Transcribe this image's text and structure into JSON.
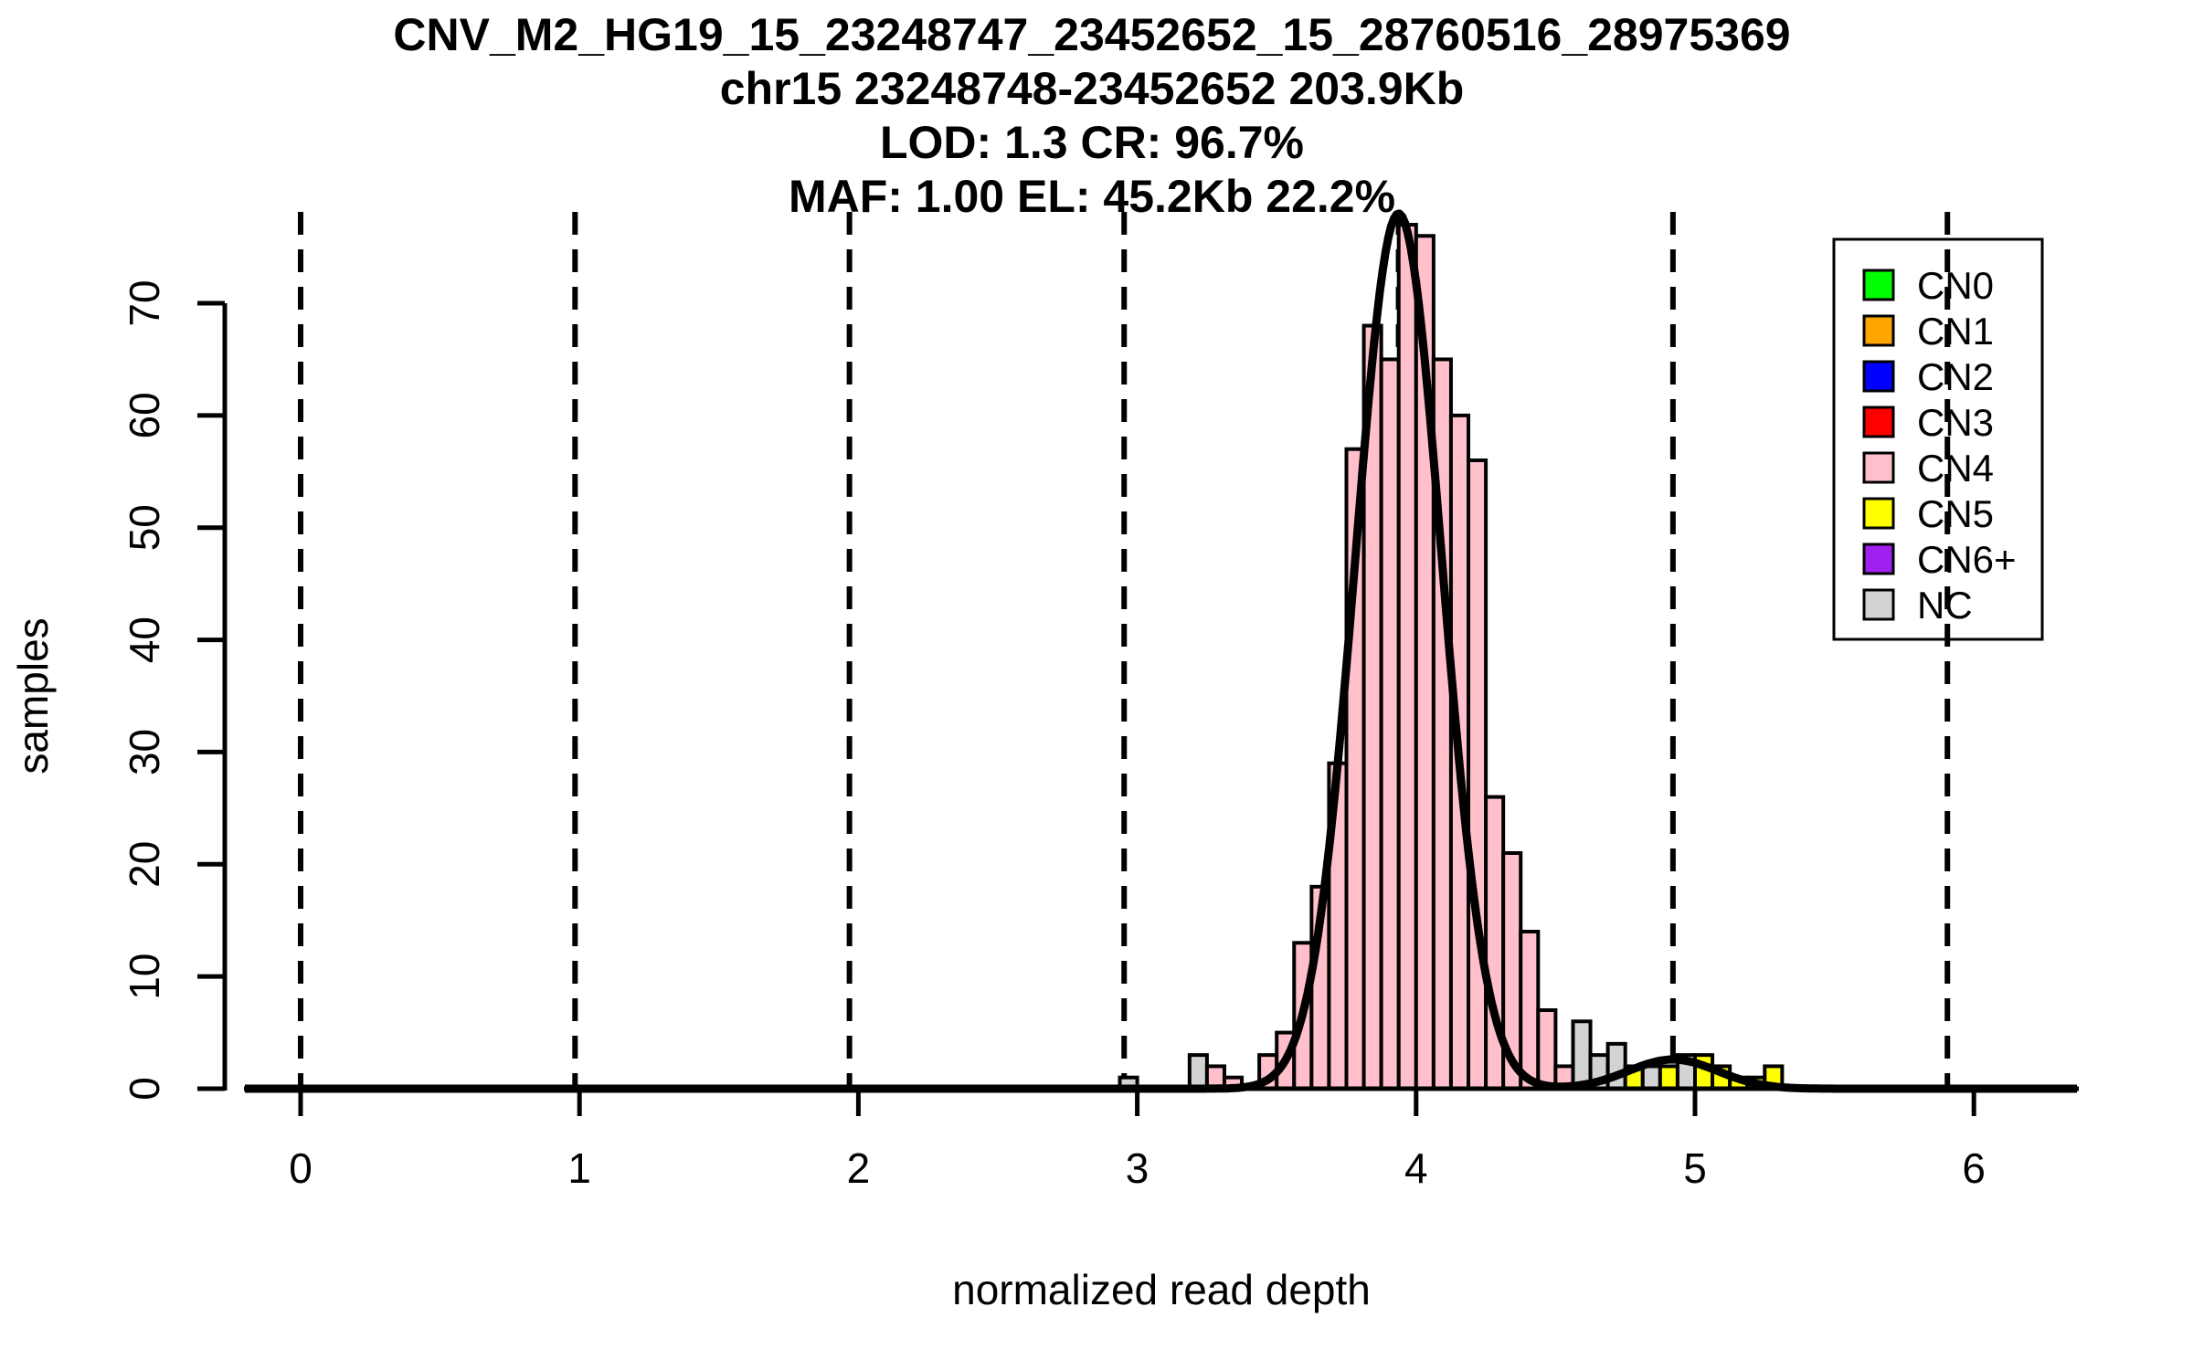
{
  "title_lines": [
    "CNV_M2_HG19_15_23248747_23452652_15_28760516_28975369",
    "chr15 23248748-23452652 203.9Kb",
    "LOD: 1.3 CR: 96.7%",
    "MAF: 1.00 EL: 45.2Kb 22.2%"
  ],
  "chart_data": {
    "type": "bar",
    "subtype": "histogram-with-density-curve",
    "title": "CNV_M2_HG19_15_23248747_23452652_15_28760516_28975369",
    "subtitle_lines": [
      "chr15 23248748-23452652 203.9Kb",
      "LOD: 1.3 CR: 96.7%",
      "MAF: 1.00 EL: 45.2Kb 22.2%"
    ],
    "xlabel": "normalized read depth",
    "ylabel": "samples",
    "xlim": [
      -0.2,
      6.38
    ],
    "ylim": [
      0,
      77
    ],
    "x_ticks": [
      0,
      1,
      2,
      3,
      4,
      5,
      6
    ],
    "y_ticks": [
      0,
      10,
      20,
      30,
      40,
      50,
      60,
      70
    ],
    "grid": "dashed-vertical",
    "dashed_lines_x": [
      0,
      0.984,
      1.968,
      2.953,
      3.937,
      4.921,
      5.905
    ],
    "bin_width": 0.0625,
    "bars": [
      {
        "x": 2.9375,
        "h": 1,
        "cn": "NC"
      },
      {
        "x": 3.1875,
        "h": 3,
        "cn": "NC"
      },
      {
        "x": 3.25,
        "h": 2,
        "cn": "CN4"
      },
      {
        "x": 3.3125,
        "h": 1,
        "cn": "CN4"
      },
      {
        "x": 3.4375,
        "h": 3,
        "cn": "CN4"
      },
      {
        "x": 3.5,
        "h": 5,
        "cn": "CN4"
      },
      {
        "x": 3.5625,
        "h": 13,
        "cn": "CN4"
      },
      {
        "x": 3.625,
        "h": 18,
        "cn": "CN4"
      },
      {
        "x": 3.6875,
        "h": 29,
        "cn": "CN4"
      },
      {
        "x": 3.75,
        "h": 57,
        "cn": "CN4"
      },
      {
        "x": 3.8125,
        "h": 68,
        "cn": "CN4"
      },
      {
        "x": 3.875,
        "h": 65,
        "cn": "CN4"
      },
      {
        "x": 3.9375,
        "h": 77,
        "cn": "CN4"
      },
      {
        "x": 4.0,
        "h": 76,
        "cn": "CN4"
      },
      {
        "x": 4.0625,
        "h": 65,
        "cn": "CN4"
      },
      {
        "x": 4.125,
        "h": 60,
        "cn": "CN4"
      },
      {
        "x": 4.1875,
        "h": 56,
        "cn": "CN4"
      },
      {
        "x": 4.25,
        "h": 26,
        "cn": "CN4"
      },
      {
        "x": 4.3125,
        "h": 21,
        "cn": "CN4"
      },
      {
        "x": 4.375,
        "h": 14,
        "cn": "CN4"
      },
      {
        "x": 4.4375,
        "h": 7,
        "cn": "CN4"
      },
      {
        "x": 4.5,
        "h": 2,
        "cn": "CN4"
      },
      {
        "x": 4.5625,
        "h": 6,
        "cn": "NC"
      },
      {
        "x": 4.625,
        "h": 3,
        "cn": "NC"
      },
      {
        "x": 4.6875,
        "h": 4,
        "cn": "NC"
      },
      {
        "x": 4.75,
        "h": 2,
        "cn": "CN5"
      },
      {
        "x": 4.8125,
        "h": 2,
        "cn": "NC"
      },
      {
        "x": 4.875,
        "h": 2,
        "cn": "CN5"
      },
      {
        "x": 4.9375,
        "h": 3,
        "cn": "NC"
      },
      {
        "x": 5.0,
        "h": 3,
        "cn": "CN5"
      },
      {
        "x": 5.0625,
        "h": 2,
        "cn": "CN5"
      },
      {
        "x": 5.125,
        "h": 1,
        "cn": "CN5"
      },
      {
        "x": 5.1875,
        "h": 1,
        "cn": "CN5"
      },
      {
        "x": 5.25,
        "h": 2,
        "cn": "CN5"
      }
    ],
    "density_components": [
      {
        "mean": 3.937,
        "sd": 0.155,
        "amp": 78
      },
      {
        "mean": 4.921,
        "sd": 0.16,
        "amp": 2.6
      }
    ],
    "legend_position": "top-right",
    "legend": [
      {
        "label": "CN0",
        "color": "#00FF00"
      },
      {
        "label": "CN1",
        "color": "#FFA500"
      },
      {
        "label": "CN2",
        "color": "#0000FF"
      },
      {
        "label": "CN3",
        "color": "#FF0000"
      },
      {
        "label": "CN4",
        "color": "#FFC0CB"
      },
      {
        "label": "CN5",
        "color": "#FFFF00"
      },
      {
        "label": "CN6+",
        "color": "#A020F0"
      },
      {
        "label": "NC",
        "color": "#D3D3D3"
      }
    ],
    "colors": {
      "CN4": "#FFC0CB",
      "CN5": "#FFFF00",
      "NC": "#D3D3D3",
      "curve": "#000000",
      "axis": "#000000",
      "bar_border": "#000000"
    }
  }
}
